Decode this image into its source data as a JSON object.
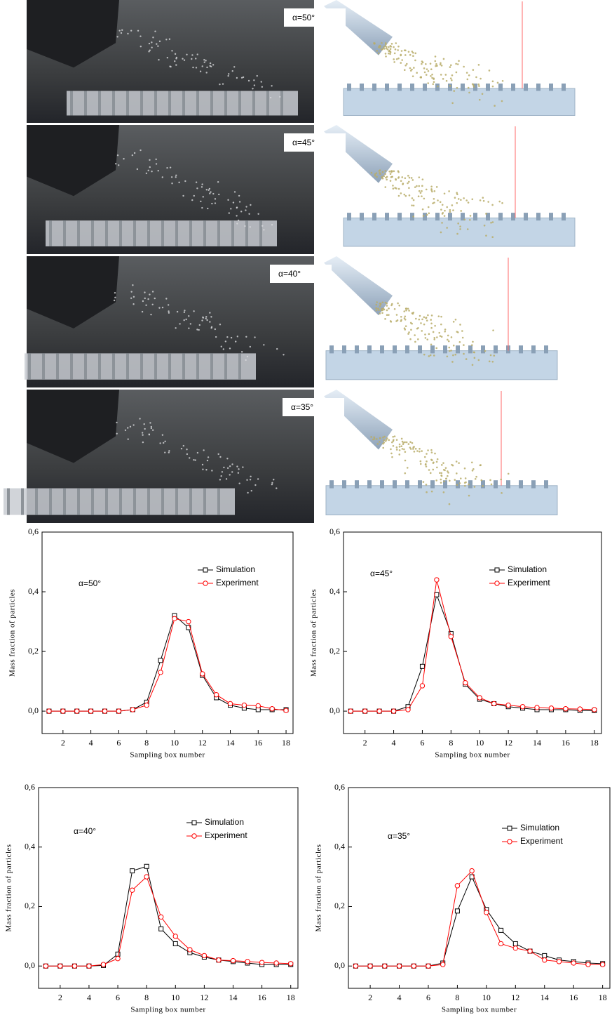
{
  "photos": [
    {
      "label": "α=50°"
    },
    {
      "label": "α=45°"
    },
    {
      "label": "α=40°"
    },
    {
      "label": "α=35°"
    }
  ],
  "chart_data": [
    {
      "type": "line",
      "annotation": "α=50°",
      "xlabel": "Sampling box number",
      "ylabel": "Mass fraction of particles",
      "x": [
        1,
        2,
        3,
        4,
        5,
        6,
        7,
        8,
        9,
        10,
        11,
        12,
        13,
        14,
        15,
        16,
        17,
        18
      ],
      "series": [
        {
          "name": "Simulation",
          "color": "#000000",
          "marker": "square",
          "values": [
            0,
            0,
            0,
            0,
            0,
            0,
            0.005,
            0.03,
            0.17,
            0.32,
            0.28,
            0.12,
            0.045,
            0.02,
            0.01,
            0.005,
            0.005,
            0.005
          ]
        },
        {
          "name": "Experiment",
          "color": "#ff0000",
          "marker": "circle",
          "values": [
            0,
            0,
            0,
            0,
            0,
            0,
            0.005,
            0.02,
            0.13,
            0.31,
            0.3,
            0.125,
            0.055,
            0.025,
            0.02,
            0.018,
            0.008,
            0.002
          ]
        }
      ],
      "xlim": [
        0.5,
        18.5
      ],
      "ylim": [
        -0.075,
        0.6
      ],
      "xticks": [
        2,
        4,
        6,
        8,
        10,
        12,
        14,
        16,
        18
      ],
      "yticks": [
        {
          "value": 0,
          "label": "0,0"
        },
        {
          "value": 0.2,
          "label": "0,2"
        },
        {
          "value": 0.4,
          "label": "0,4"
        },
        {
          "value": 0.6,
          "label": "0,6"
        }
      ],
      "legend": "upper right"
    },
    {
      "type": "line",
      "annotation": "α=45°",
      "xlabel": "Sampling box number",
      "ylabel": "Mass fraction of particles",
      "x": [
        1,
        2,
        3,
        4,
        5,
        6,
        7,
        8,
        9,
        10,
        11,
        12,
        13,
        14,
        15,
        16,
        17,
        18
      ],
      "series": [
        {
          "name": "Simulation",
          "color": "#000000",
          "marker": "square",
          "values": [
            0,
            0,
            0,
            0,
            0.015,
            0.15,
            0.39,
            0.26,
            0.09,
            0.04,
            0.025,
            0.015,
            0.01,
            0.005,
            0.005,
            0.005,
            0.002,
            0.002
          ]
        },
        {
          "name": "Experiment",
          "color": "#ff0000",
          "marker": "circle",
          "values": [
            0,
            0,
            0,
            0,
            0.005,
            0.085,
            0.44,
            0.25,
            0.095,
            0.045,
            0.025,
            0.02,
            0.015,
            0.012,
            0.01,
            0.008,
            0.007,
            0.005
          ]
        }
      ],
      "xlim": [
        0.5,
        18.5
      ],
      "ylim": [
        -0.075,
        0.6
      ],
      "xticks": [
        2,
        4,
        6,
        8,
        10,
        12,
        14,
        16,
        18
      ],
      "yticks": [
        {
          "value": 0,
          "label": "0,0"
        },
        {
          "value": 0.2,
          "label": "0,2"
        },
        {
          "value": 0.4,
          "label": "0,4"
        },
        {
          "value": 0.6,
          "label": "0,6"
        }
      ],
      "legend": "upper right"
    },
    {
      "type": "line",
      "annotation": "α=40°",
      "xlabel": "Sampling box number",
      "ylabel": "Mass fraction of particles",
      "x": [
        1,
        2,
        3,
        4,
        5,
        6,
        7,
        8,
        9,
        10,
        11,
        12,
        13,
        14,
        15,
        16,
        17,
        18
      ],
      "series": [
        {
          "name": "Simulation",
          "color": "#000000",
          "marker": "square",
          "values": [
            0,
            0,
            0,
            0,
            0.002,
            0.04,
            0.32,
            0.335,
            0.125,
            0.075,
            0.045,
            0.03,
            0.02,
            0.015,
            0.01,
            0.005,
            0.005,
            0.005
          ]
        },
        {
          "name": "Experiment",
          "color": "#ff0000",
          "marker": "circle",
          "values": [
            0,
            0,
            0,
            0,
            0.005,
            0.025,
            0.255,
            0.3,
            0.165,
            0.1,
            0.055,
            0.035,
            0.02,
            0.018,
            0.015,
            0.012,
            0.01,
            0.008
          ]
        }
      ],
      "xlim": [
        0.5,
        18.5
      ],
      "ylim": [
        -0.075,
        0.6
      ],
      "xticks": [
        2,
        4,
        6,
        8,
        10,
        12,
        14,
        16,
        18
      ],
      "yticks": [
        {
          "value": 0,
          "label": "0,0"
        },
        {
          "value": 0.2,
          "label": "0,2"
        },
        {
          "value": 0.4,
          "label": "0,4"
        },
        {
          "value": 0.6,
          "label": "0,6"
        }
      ],
      "legend": "upper right"
    },
    {
      "type": "line",
      "annotation": "α=35°",
      "xlabel": "Sampling box number",
      "ylabel": "Mass fraction of particles",
      "x": [
        1,
        2,
        3,
        4,
        5,
        6,
        7,
        8,
        9,
        10,
        11,
        12,
        13,
        14,
        15,
        16,
        17,
        18
      ],
      "series": [
        {
          "name": "Simulation",
          "color": "#000000",
          "marker": "square",
          "values": [
            0,
            0,
            0,
            0,
            0,
            0,
            0.01,
            0.185,
            0.3,
            0.19,
            0.12,
            0.075,
            0.05,
            0.035,
            0.02,
            0.015,
            0.01,
            0.008
          ]
        },
        {
          "name": "Experiment",
          "color": "#ff0000",
          "marker": "circle",
          "values": [
            0,
            0,
            0,
            0,
            0,
            0,
            0.005,
            0.27,
            0.32,
            0.18,
            0.075,
            0.06,
            0.05,
            0.02,
            0.015,
            0.01,
            0.005,
            0.005
          ]
        }
      ],
      "xlim": [
        0.5,
        18.5
      ],
      "ylim": [
        -0.075,
        0.6
      ],
      "xticks": [
        2,
        4,
        6,
        8,
        10,
        12,
        14,
        16,
        18
      ],
      "yticks": [
        {
          "value": 0,
          "label": "0,0"
        },
        {
          "value": 0.2,
          "label": "0,2"
        },
        {
          "value": 0.4,
          "label": "0,4"
        },
        {
          "value": 0.6,
          "label": "0,6"
        }
      ],
      "legend": "upper right"
    }
  ]
}
